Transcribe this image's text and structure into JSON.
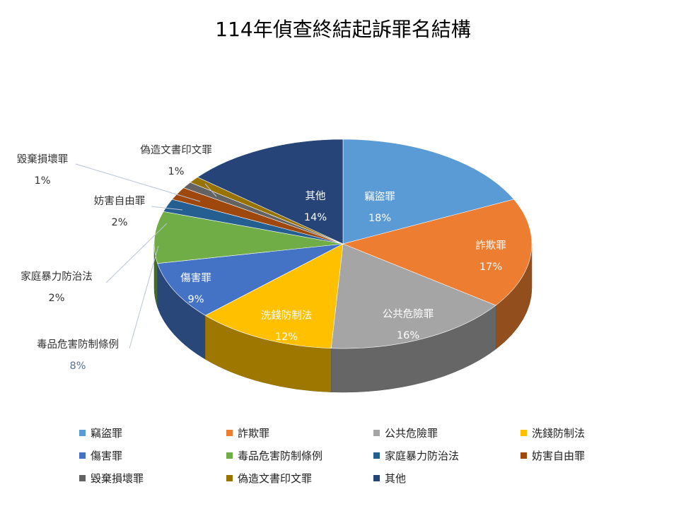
{
  "chart_data": {
    "type": "pie",
    "title": "114年偵查終結起訴罪名結構",
    "categories": [
      "竊盜罪",
      "詐欺罪",
      "公共危險罪",
      "洗錢防制法",
      "傷害罪",
      "毒品危害防制條例",
      "家庭暴力防治法",
      "妨害自由罪",
      "毀棄損壞罪",
      "偽造文書印文罪",
      "其他"
    ],
    "values": [
      18,
      17,
      16,
      12,
      9,
      8,
      2,
      2,
      1,
      1,
      14
    ],
    "value_labels": [
      "18%",
      "17%",
      "16%",
      "12%",
      "9%",
      "8%",
      "2%",
      "2%",
      "1%",
      "1%",
      "14%"
    ],
    "colors": [
      "#5B9BD5",
      "#ED7D31",
      "#A5A5A5",
      "#FFC000",
      "#4472C4",
      "#70AD47",
      "#255E91",
      "#9E480E",
      "#636363",
      "#997300",
      "#264478"
    ],
    "three_d": true,
    "legend_position": "bottom"
  }
}
